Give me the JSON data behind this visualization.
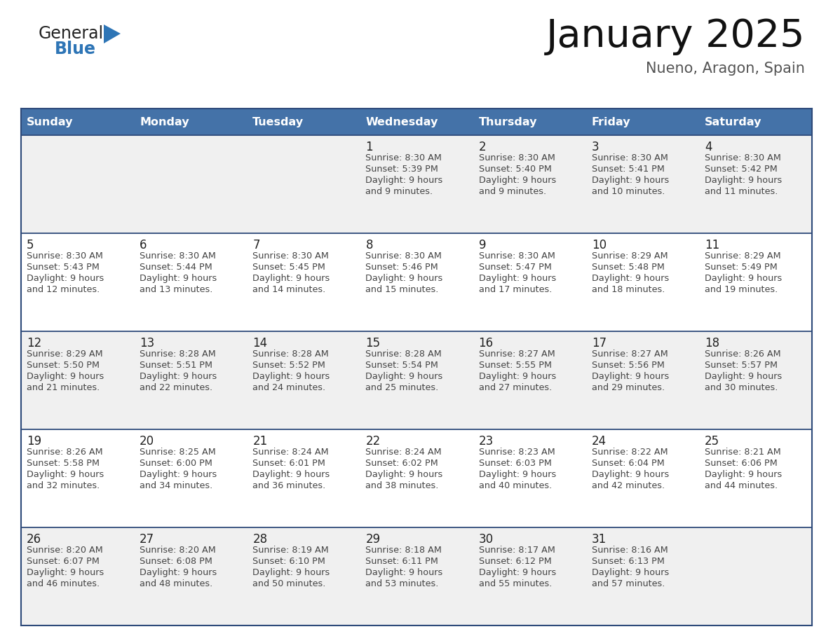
{
  "title": "January 2025",
  "subtitle": "Nueno, Aragon, Spain",
  "header_bg": "#4472A8",
  "header_text_color": "#FFFFFF",
  "header_days": [
    "Sunday",
    "Monday",
    "Tuesday",
    "Wednesday",
    "Thursday",
    "Friday",
    "Saturday"
  ],
  "row_bg_odd": "#F0F0F0",
  "row_bg_even": "#FFFFFF",
  "cell_text_color": "#444444",
  "day_num_color": "#222222",
  "divider_color": "#2E4A7A",
  "logo_general_color": "#222222",
  "logo_blue_color": "#2E75B6",
  "calendar": [
    [
      null,
      null,
      null,
      {
        "day": 1,
        "sunrise": "8:30 AM",
        "sunset": "5:39 PM",
        "daylight_hrs": 9,
        "daylight_min": 9
      },
      {
        "day": 2,
        "sunrise": "8:30 AM",
        "sunset": "5:40 PM",
        "daylight_hrs": 9,
        "daylight_min": 9
      },
      {
        "day": 3,
        "sunrise": "8:30 AM",
        "sunset": "5:41 PM",
        "daylight_hrs": 9,
        "daylight_min": 10
      },
      {
        "day": 4,
        "sunrise": "8:30 AM",
        "sunset": "5:42 PM",
        "daylight_hrs": 9,
        "daylight_min": 11
      }
    ],
    [
      {
        "day": 5,
        "sunrise": "8:30 AM",
        "sunset": "5:43 PM",
        "daylight_hrs": 9,
        "daylight_min": 12
      },
      {
        "day": 6,
        "sunrise": "8:30 AM",
        "sunset": "5:44 PM",
        "daylight_hrs": 9,
        "daylight_min": 13
      },
      {
        "day": 7,
        "sunrise": "8:30 AM",
        "sunset": "5:45 PM",
        "daylight_hrs": 9,
        "daylight_min": 14
      },
      {
        "day": 8,
        "sunrise": "8:30 AM",
        "sunset": "5:46 PM",
        "daylight_hrs": 9,
        "daylight_min": 15
      },
      {
        "day": 9,
        "sunrise": "8:30 AM",
        "sunset": "5:47 PM",
        "daylight_hrs": 9,
        "daylight_min": 17
      },
      {
        "day": 10,
        "sunrise": "8:29 AM",
        "sunset": "5:48 PM",
        "daylight_hrs": 9,
        "daylight_min": 18
      },
      {
        "day": 11,
        "sunrise": "8:29 AM",
        "sunset": "5:49 PM",
        "daylight_hrs": 9,
        "daylight_min": 19
      }
    ],
    [
      {
        "day": 12,
        "sunrise": "8:29 AM",
        "sunset": "5:50 PM",
        "daylight_hrs": 9,
        "daylight_min": 21
      },
      {
        "day": 13,
        "sunrise": "8:28 AM",
        "sunset": "5:51 PM",
        "daylight_hrs": 9,
        "daylight_min": 22
      },
      {
        "day": 14,
        "sunrise": "8:28 AM",
        "sunset": "5:52 PM",
        "daylight_hrs": 9,
        "daylight_min": 24
      },
      {
        "day": 15,
        "sunrise": "8:28 AM",
        "sunset": "5:54 PM",
        "daylight_hrs": 9,
        "daylight_min": 25
      },
      {
        "day": 16,
        "sunrise": "8:27 AM",
        "sunset": "5:55 PM",
        "daylight_hrs": 9,
        "daylight_min": 27
      },
      {
        "day": 17,
        "sunrise": "8:27 AM",
        "sunset": "5:56 PM",
        "daylight_hrs": 9,
        "daylight_min": 29
      },
      {
        "day": 18,
        "sunrise": "8:26 AM",
        "sunset": "5:57 PM",
        "daylight_hrs": 9,
        "daylight_min": 30
      }
    ],
    [
      {
        "day": 19,
        "sunrise": "8:26 AM",
        "sunset": "5:58 PM",
        "daylight_hrs": 9,
        "daylight_min": 32
      },
      {
        "day": 20,
        "sunrise": "8:25 AM",
        "sunset": "6:00 PM",
        "daylight_hrs": 9,
        "daylight_min": 34
      },
      {
        "day": 21,
        "sunrise": "8:24 AM",
        "sunset": "6:01 PM",
        "daylight_hrs": 9,
        "daylight_min": 36
      },
      {
        "day": 22,
        "sunrise": "8:24 AM",
        "sunset": "6:02 PM",
        "daylight_hrs": 9,
        "daylight_min": 38
      },
      {
        "day": 23,
        "sunrise": "8:23 AM",
        "sunset": "6:03 PM",
        "daylight_hrs": 9,
        "daylight_min": 40
      },
      {
        "day": 24,
        "sunrise": "8:22 AM",
        "sunset": "6:04 PM",
        "daylight_hrs": 9,
        "daylight_min": 42
      },
      {
        "day": 25,
        "sunrise": "8:21 AM",
        "sunset": "6:06 PM",
        "daylight_hrs": 9,
        "daylight_min": 44
      }
    ],
    [
      {
        "day": 26,
        "sunrise": "8:20 AM",
        "sunset": "6:07 PM",
        "daylight_hrs": 9,
        "daylight_min": 46
      },
      {
        "day": 27,
        "sunrise": "8:20 AM",
        "sunset": "6:08 PM",
        "daylight_hrs": 9,
        "daylight_min": 48
      },
      {
        "day": 28,
        "sunrise": "8:19 AM",
        "sunset": "6:10 PM",
        "daylight_hrs": 9,
        "daylight_min": 50
      },
      {
        "day": 29,
        "sunrise": "8:18 AM",
        "sunset": "6:11 PM",
        "daylight_hrs": 9,
        "daylight_min": 53
      },
      {
        "day": 30,
        "sunrise": "8:17 AM",
        "sunset": "6:12 PM",
        "daylight_hrs": 9,
        "daylight_min": 55
      },
      {
        "day": 31,
        "sunrise": "8:16 AM",
        "sunset": "6:13 PM",
        "daylight_hrs": 9,
        "daylight_min": 57
      },
      null
    ]
  ]
}
